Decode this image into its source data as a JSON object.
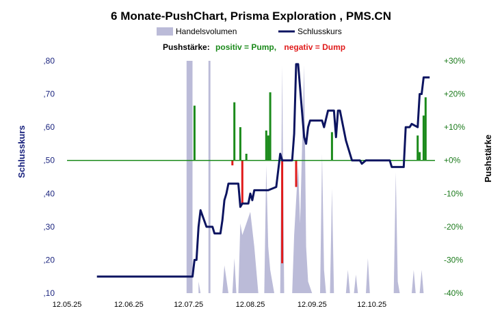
{
  "chart_data": {
    "type": "bar",
    "title": "6 Monate-PushChart,  Prisma Exploration , PMS.CN",
    "legend": {
      "placement": "top",
      "volume_label": "Handelsvolumen",
      "close_label": "Schlusskurs",
      "push_prefix": "Pushstärke:",
      "push_positive": "positiv = Pump,",
      "push_negative": "negativ = Dump"
    },
    "ylabel_left": "Schlusskurs",
    "ylabel_right": "Pushstärke",
    "y_left_range": [
      0.1,
      0.8
    ],
    "y_left_ticks": [
      ",10",
      ",20",
      ",30",
      ",40",
      ",50",
      ",60",
      ",70",
      ",80"
    ],
    "y_right_range": [
      -40,
      30
    ],
    "y_right_ticks": [
      "-40%",
      "-30%",
      "-20%",
      "-10%",
      "+0%",
      "+10%",
      "+20%",
      "+30%"
    ],
    "x_range": [
      "2025-05-12",
      "2025-11-12"
    ],
    "x_ticks": [
      "12.05.25",
      "12.06.25",
      "12.07.25",
      "12.08.25",
      "12.09.25",
      "12.10.25"
    ],
    "grid": false,
    "colors": {
      "close": "#0c1460",
      "volume": "#bbbbd8",
      "pump": "#1b8a1b",
      "dump": "#e01b1b",
      "zero_line": "#1b8a1b",
      "left_axis": "#1a237e",
      "right_axis": "#1b7a1b"
    },
    "series": [
      {
        "name": "Schlusskurs",
        "type": "line",
        "points": [
          [
            "2025-05-27",
            0.15
          ],
          [
            "2025-06-05",
            0.15
          ],
          [
            "2025-06-15",
            0.15
          ],
          [
            "2025-06-25",
            0.15
          ],
          [
            "2025-07-05",
            0.15
          ],
          [
            "2025-07-12",
            0.15
          ],
          [
            "2025-07-14",
            0.15
          ],
          [
            "2025-07-15",
            0.2
          ],
          [
            "2025-07-16",
            0.2
          ],
          [
            "2025-07-17",
            0.3
          ],
          [
            "2025-07-18",
            0.35
          ],
          [
            "2025-07-21",
            0.3
          ],
          [
            "2025-07-24",
            0.3
          ],
          [
            "2025-07-25",
            0.28
          ],
          [
            "2025-07-28",
            0.28
          ],
          [
            "2025-07-29",
            0.32
          ],
          [
            "2025-07-30",
            0.38
          ],
          [
            "2025-07-31",
            0.4
          ],
          [
            "2025-08-01",
            0.43
          ],
          [
            "2025-08-04",
            0.43
          ],
          [
            "2025-08-06",
            0.43
          ],
          [
            "2025-08-07",
            0.36
          ],
          [
            "2025-08-08",
            0.37
          ],
          [
            "2025-08-11",
            0.37
          ],
          [
            "2025-08-12",
            0.4
          ],
          [
            "2025-08-13",
            0.38
          ],
          [
            "2025-08-14",
            0.41
          ],
          [
            "2025-08-18",
            0.41
          ],
          [
            "2025-08-21",
            0.41
          ],
          [
            "2025-08-25",
            0.42
          ],
          [
            "2025-08-26",
            0.47
          ],
          [
            "2025-08-27",
            0.52
          ],
          [
            "2025-08-28",
            0.5
          ],
          [
            "2025-09-02",
            0.5
          ],
          [
            "2025-09-03",
            0.58
          ],
          [
            "2025-09-04",
            0.79
          ],
          [
            "2025-09-05",
            0.79
          ],
          [
            "2025-09-08",
            0.57
          ],
          [
            "2025-09-09",
            0.55
          ],
          [
            "2025-09-10",
            0.6
          ],
          [
            "2025-09-11",
            0.62
          ],
          [
            "2025-09-15",
            0.62
          ],
          [
            "2025-09-17",
            0.62
          ],
          [
            "2025-09-18",
            0.6
          ],
          [
            "2025-09-20",
            0.65
          ],
          [
            "2025-09-23",
            0.65
          ],
          [
            "2025-09-24",
            0.57
          ],
          [
            "2025-09-25",
            0.65
          ],
          [
            "2025-09-26",
            0.65
          ],
          [
            "2025-09-29",
            0.56
          ],
          [
            "2025-10-02",
            0.5
          ],
          [
            "2025-10-06",
            0.5
          ],
          [
            "2025-10-07",
            0.49
          ],
          [
            "2025-10-09",
            0.5
          ],
          [
            "2025-10-15",
            0.5
          ],
          [
            "2025-10-21",
            0.5
          ],
          [
            "2025-10-22",
            0.48
          ],
          [
            "2025-10-28",
            0.48
          ],
          [
            "2025-10-29",
            0.6
          ],
          [
            "2025-10-31",
            0.6
          ],
          [
            "2025-11-01",
            0.61
          ],
          [
            "2025-11-04",
            0.6
          ],
          [
            "2025-11-05",
            0.7
          ],
          [
            "2025-11-06",
            0.7
          ],
          [
            "2025-11-07",
            0.75
          ],
          [
            "2025-11-10",
            0.75
          ]
        ]
      },
      {
        "name": "Handelsvolumen",
        "type": "area",
        "points": [
          [
            "2025-07-11",
            0
          ],
          [
            "2025-07-11",
            100
          ],
          [
            "2025-07-14",
            100
          ],
          [
            "2025-07-14",
            0
          ],
          [
            "2025-07-17",
            0
          ],
          [
            "2025-07-17",
            5
          ],
          [
            "2025-07-18",
            0
          ],
          [
            "2025-07-22",
            0
          ],
          [
            "2025-07-22",
            100
          ],
          [
            "2025-07-23",
            100
          ],
          [
            "2025-07-23",
            0
          ],
          [
            "2025-07-29",
            0
          ],
          [
            "2025-07-30",
            12
          ],
          [
            "2025-08-01",
            0
          ],
          [
            "2025-08-03",
            0
          ],
          [
            "2025-08-04",
            15
          ],
          [
            "2025-08-05",
            0
          ],
          [
            "2025-08-06",
            0
          ],
          [
            "2025-08-07",
            30
          ],
          [
            "2025-08-08",
            25
          ],
          [
            "2025-08-10",
            30
          ],
          [
            "2025-08-12",
            35
          ],
          [
            "2025-08-14",
            20
          ],
          [
            "2025-08-16",
            0
          ],
          [
            "2025-08-19",
            0
          ],
          [
            "2025-08-20",
            55
          ],
          [
            "2025-08-21",
            20
          ],
          [
            "2025-08-22",
            10
          ],
          [
            "2025-08-24",
            0
          ],
          [
            "2025-08-27",
            0
          ],
          [
            "2025-08-28",
            98
          ],
          [
            "2025-08-29",
            0
          ],
          [
            "2025-09-02",
            0
          ],
          [
            "2025-09-03",
            25
          ],
          [
            "2025-09-04",
            40
          ],
          [
            "2025-09-05",
            55
          ],
          [
            "2025-09-06",
            30
          ],
          [
            "2025-09-08",
            98
          ],
          [
            "2025-09-09",
            20
          ],
          [
            "2025-09-10",
            5
          ],
          [
            "2025-09-12",
            0
          ],
          [
            "2025-09-16",
            0
          ],
          [
            "2025-09-17",
            60
          ],
          [
            "2025-09-18",
            10
          ],
          [
            "2025-09-19",
            0
          ],
          [
            "2025-09-21",
            0
          ],
          [
            "2025-09-22",
            45
          ],
          [
            "2025-09-23",
            0
          ],
          [
            "2025-09-29",
            0
          ],
          [
            "2025-09-30",
            10
          ],
          [
            "2025-10-01",
            0
          ],
          [
            "2025-10-03",
            0
          ],
          [
            "2025-10-04",
            8
          ],
          [
            "2025-10-05",
            0
          ],
          [
            "2025-10-09",
            0
          ],
          [
            "2025-10-10",
            15
          ],
          [
            "2025-10-11",
            0
          ],
          [
            "2025-10-23",
            0
          ],
          [
            "2025-10-24",
            52
          ],
          [
            "2025-10-25",
            5
          ],
          [
            "2025-10-26",
            0
          ],
          [
            "2025-11-01",
            0
          ],
          [
            "2025-11-02",
            10
          ],
          [
            "2025-11-03",
            0
          ],
          [
            "2025-11-05",
            0
          ],
          [
            "2025-11-06",
            10
          ],
          [
            "2025-11-07",
            0
          ]
        ]
      },
      {
        "name": "Pushstärke",
        "type": "bar",
        "points": [
          [
            "2025-07-15",
            16.5
          ],
          [
            "2025-08-03",
            -1.5
          ],
          [
            "2025-08-04",
            17.5
          ],
          [
            "2025-08-07",
            10.0
          ],
          [
            "2025-08-08",
            -13.0
          ],
          [
            "2025-08-10",
            2.0
          ],
          [
            "2025-08-20",
            9.0
          ],
          [
            "2025-08-21",
            7.5
          ],
          [
            "2025-08-22",
            20.5
          ],
          [
            "2025-08-28",
            -31.0
          ],
          [
            "2025-09-04",
            -8.0
          ],
          [
            "2025-09-22",
            8.5
          ],
          [
            "2025-11-04",
            7.5
          ],
          [
            "2025-11-05",
            2.5
          ],
          [
            "2025-11-07",
            13.5
          ],
          [
            "2025-11-08",
            19.0
          ]
        ]
      }
    ]
  }
}
